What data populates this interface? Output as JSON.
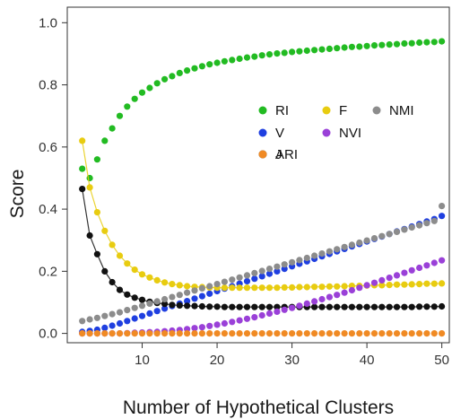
{
  "chart_data": {
    "type": "scatter",
    "xlabel": "Number of Hypothetical Clusters",
    "ylabel": "Score",
    "xlim": [
      0,
      51
    ],
    "ylim": [
      -0.03,
      1.05
    ],
    "x_ticks": [
      10,
      20,
      30,
      40,
      50
    ],
    "y_ticks": [
      0.0,
      0.2,
      0.4,
      0.6,
      0.8,
      1.0
    ],
    "x_tick_labels": [
      "10",
      "20",
      "30",
      "40",
      "50"
    ],
    "y_tick_labels": [
      "0.0",
      "0.2",
      "0.4",
      "0.6",
      "0.8",
      "1.0"
    ],
    "grid": false,
    "legend_position": "center-right",
    "x": [
      2,
      3,
      4,
      5,
      6,
      7,
      8,
      9,
      10,
      11,
      12,
      13,
      14,
      15,
      16,
      17,
      18,
      19,
      20,
      21,
      22,
      23,
      24,
      25,
      26,
      27,
      28,
      29,
      30,
      31,
      32,
      33,
      34,
      35,
      36,
      37,
      38,
      39,
      40,
      41,
      42,
      43,
      44,
      45,
      46,
      47,
      48,
      49,
      50
    ],
    "series": [
      {
        "name": "RI",
        "color": "#22bb22",
        "connect": false,
        "values": [
          0.53,
          0.5,
          0.56,
          0.62,
          0.66,
          0.7,
          0.73,
          0.755,
          0.775,
          0.79,
          0.805,
          0.818,
          0.828,
          0.838,
          0.846,
          0.853,
          0.86,
          0.866,
          0.871,
          0.876,
          0.88,
          0.884,
          0.888,
          0.891,
          0.895,
          0.898,
          0.901,
          0.903,
          0.906,
          0.908,
          0.91,
          0.912,
          0.914,
          0.916,
          0.918,
          0.92,
          0.922,
          0.923,
          0.925,
          0.927,
          0.928,
          0.93,
          0.931,
          0.933,
          0.934,
          0.936,
          0.937,
          0.938,
          0.94
        ]
      },
      {
        "name": "V",
        "color": "#1f3fe0",
        "connect": false,
        "values": [
          0.005,
          0.008,
          0.012,
          0.018,
          0.025,
          0.032,
          0.04,
          0.048,
          0.056,
          0.064,
          0.072,
          0.08,
          0.088,
          0.096,
          0.104,
          0.112,
          0.12,
          0.128,
          0.136,
          0.144,
          0.152,
          0.16,
          0.168,
          0.176,
          0.184,
          0.192,
          0.2,
          0.208,
          0.216,
          0.224,
          0.232,
          0.24,
          0.248,
          0.256,
          0.264,
          0.272,
          0.28,
          0.288,
          0.296,
          0.304,
          0.312,
          0.32,
          0.328,
          0.336,
          0.344,
          0.352,
          0.36,
          0.368,
          0.378
        ]
      },
      {
        "name": "J",
        "color": "#111111",
        "connect": true,
        "values": [
          0.465,
          0.315,
          0.255,
          0.2,
          0.165,
          0.14,
          0.125,
          0.115,
          0.108,
          0.102,
          0.098,
          0.095,
          0.092,
          0.09,
          0.089,
          0.088,
          0.087,
          0.086,
          0.086,
          0.085,
          0.085,
          0.085,
          0.085,
          0.085,
          0.085,
          0.085,
          0.085,
          0.085,
          0.085,
          0.085,
          0.085,
          0.085,
          0.085,
          0.085,
          0.085,
          0.085,
          0.085,
          0.085,
          0.085,
          0.085,
          0.085,
          0.085,
          0.085,
          0.085,
          0.085,
          0.086,
          0.086,
          0.086,
          0.087
        ]
      },
      {
        "name": "F",
        "color": "#e8cc10",
        "connect": true,
        "values": [
          0.62,
          0.47,
          0.39,
          0.33,
          0.285,
          0.25,
          0.225,
          0.205,
          0.19,
          0.18,
          0.171,
          0.164,
          0.159,
          0.155,
          0.152,
          0.15,
          0.149,
          0.148,
          0.147,
          0.147,
          0.147,
          0.147,
          0.147,
          0.147,
          0.147,
          0.147,
          0.147,
          0.148,
          0.148,
          0.149,
          0.149,
          0.15,
          0.15,
          0.151,
          0.151,
          0.152,
          0.153,
          0.153,
          0.154,
          0.155,
          0.155,
          0.156,
          0.157,
          0.157,
          0.158,
          0.159,
          0.16,
          0.16,
          0.161
        ]
      },
      {
        "name": "NVI",
        "color": "#9a40d8",
        "connect": false,
        "values": [
          0.0,
          0.0,
          0.0,
          0.0,
          0.0,
          0.0,
          0.001,
          0.002,
          0.003,
          0.004,
          0.005,
          0.007,
          0.009,
          0.011,
          0.014,
          0.017,
          0.02,
          0.024,
          0.028,
          0.032,
          0.037,
          0.042,
          0.047,
          0.052,
          0.058,
          0.064,
          0.07,
          0.076,
          0.082,
          0.089,
          0.096,
          0.103,
          0.11,
          0.117,
          0.124,
          0.131,
          0.139,
          0.147,
          0.155,
          0.163,
          0.171,
          0.179,
          0.187,
          0.195,
          0.203,
          0.211,
          0.219,
          0.227,
          0.235
        ]
      },
      {
        "name": "ARI",
        "color": "#f08a24",
        "connect": false,
        "values": [
          0.0,
          0.0,
          0.0,
          0.0,
          0.0,
          0.0,
          0.0,
          0.0,
          0.0,
          0.0,
          0.0,
          0.0,
          0.0,
          0.0,
          0.0,
          0.0,
          0.0,
          0.0,
          0.0,
          0.0,
          0.0,
          0.0,
          0.0,
          0.0,
          0.0,
          0.0,
          0.0,
          0.0,
          0.0,
          0.0,
          0.0,
          0.0,
          0.0,
          0.0,
          0.0,
          0.0,
          0.0,
          0.0,
          0.0,
          0.0,
          0.0,
          0.0,
          0.0,
          0.0,
          0.0,
          0.0,
          0.0,
          0.0,
          0.0
        ]
      },
      {
        "name": "NMI",
        "color": "#8c8c8c",
        "connect": false,
        "values": [
          0.04,
          0.045,
          0.05,
          0.056,
          0.062,
          0.068,
          0.075,
          0.082,
          0.089,
          0.096,
          0.103,
          0.11,
          0.117,
          0.124,
          0.131,
          0.138,
          0.145,
          0.152,
          0.159,
          0.166,
          0.173,
          0.18,
          0.187,
          0.194,
          0.201,
          0.208,
          0.215,
          0.222,
          0.229,
          0.236,
          0.243,
          0.25,
          0.257,
          0.264,
          0.271,
          0.278,
          0.285,
          0.292,
          0.299,
          0.306,
          0.313,
          0.32,
          0.327,
          0.334,
          0.341,
          0.348,
          0.355,
          0.362,
          0.41
        ]
      }
    ],
    "legend": [
      {
        "name": "RI",
        "color": "#22bb22"
      },
      {
        "name": "F",
        "color": "#e8cc10"
      },
      {
        "name": "NMI",
        "color": "#8c8c8c"
      },
      {
        "name": "V",
        "color": "#1f3fe0"
      },
      {
        "name": "NVI",
        "color": "#9a40d8"
      },
      {
        "name": "J",
        "color": "#111111"
      },
      {
        "name": "ARI",
        "color": "#f08a24"
      }
    ]
  }
}
